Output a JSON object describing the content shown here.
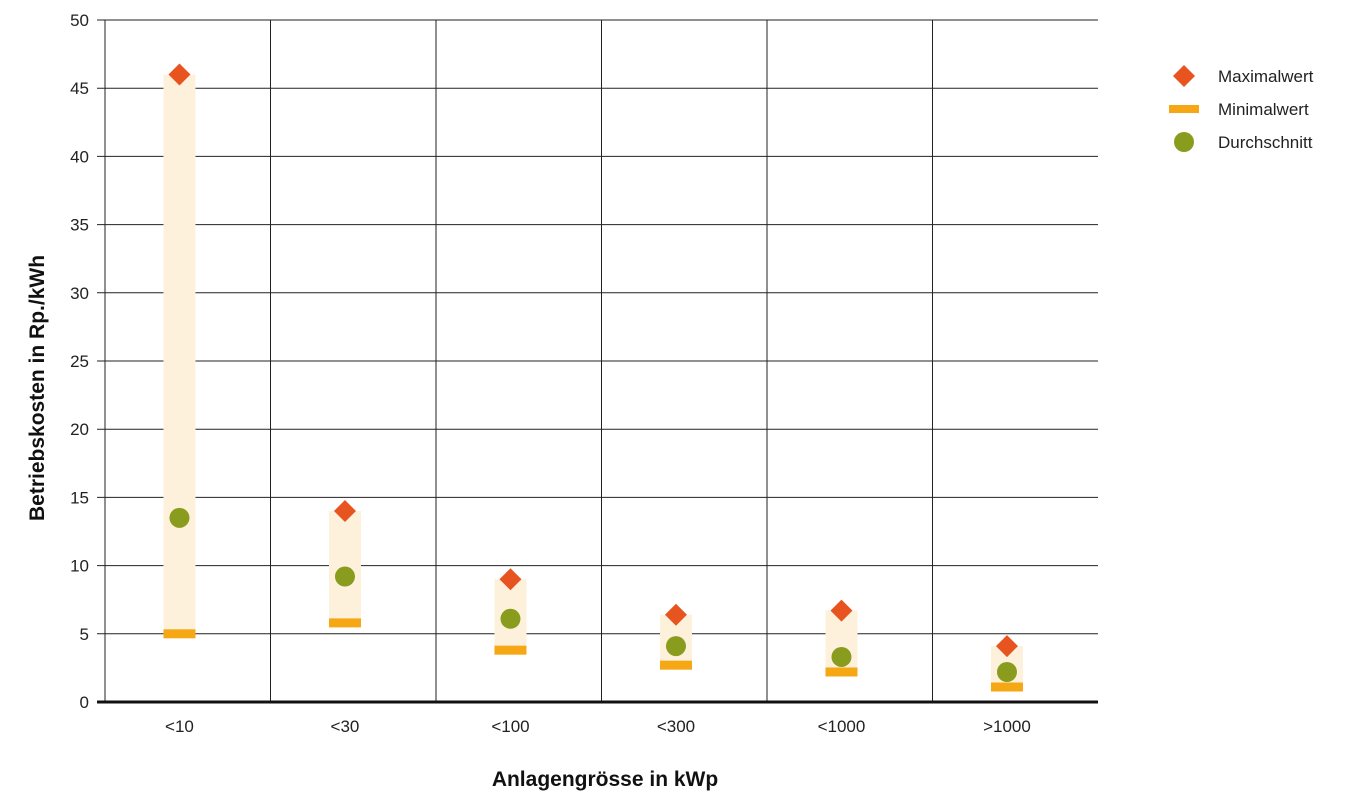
{
  "chart_data": {
    "type": "scatter",
    "categories": [
      "<10",
      "<30",
      "<100",
      "<300",
      "<1000",
      ">1000"
    ],
    "series": [
      {
        "name": "Maximalwert",
        "marker": "diamond",
        "color": "#e85420",
        "values": [
          46,
          14,
          9,
          6.4,
          6.7,
          4.1
        ]
      },
      {
        "name": "Minimalwert",
        "marker": "bar",
        "color": "#f5a714",
        "values": [
          5,
          5.8,
          3.8,
          2.7,
          2.2,
          1.1
        ]
      },
      {
        "name": "Durchschnitt",
        "marker": "circle",
        "color": "#8a9c1e",
        "values": [
          13.5,
          9.2,
          6.1,
          4.1,
          3.3,
          2.2
        ]
      }
    ],
    "range_band_color": "#fdf1dc",
    "xlabel": "Anlagengrösse in kWp",
    "ylabel": "Betriebskosten in Rp./kWh",
    "ylim": [
      0,
      50
    ],
    "yticks": [
      0,
      5,
      10,
      15,
      20,
      25,
      30,
      35,
      40,
      45,
      50
    ],
    "grid": true,
    "legend_position": "top-right"
  }
}
